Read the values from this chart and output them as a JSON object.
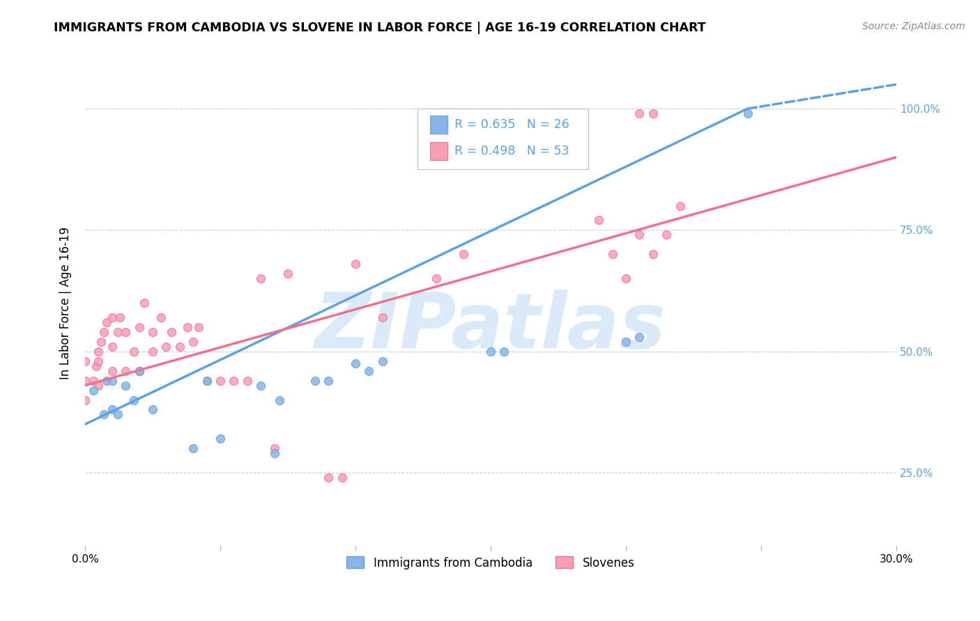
{
  "title": "IMMIGRANTS FROM CAMBODIA VS SLOVENE IN LABOR FORCE | AGE 16-19 CORRELATION CHART",
  "source": "Source: ZipAtlas.com",
  "ylabel": "In Labor Force | Age 16-19",
  "xlim": [
    0.0,
    0.3
  ],
  "ylim": [
    0.1,
    1.1
  ],
  "yticks": [
    0.25,
    0.5,
    0.75,
    1.0
  ],
  "ytick_labels": [
    "25.0%",
    "50.0%",
    "75.0%",
    "100.0%"
  ],
  "xticks": [
    0.0,
    0.05,
    0.1,
    0.15,
    0.2,
    0.25,
    0.3
  ],
  "xtick_labels": [
    "0.0%",
    "",
    "",
    "",
    "",
    "",
    "30.0%"
  ],
  "color_cambodia": "#89b4e8",
  "color_slovene": "#f5a0b5",
  "line_color_cambodia": "#5ba3e0",
  "line_color_slovene": "#f07090",
  "watermark": "ZIPatlas",
  "watermark_color": "#daeaf8",
  "cambodia_x": [
    0.003,
    0.007,
    0.008,
    0.01,
    0.01,
    0.012,
    0.015,
    0.018,
    0.02,
    0.025,
    0.04,
    0.045,
    0.05,
    0.065,
    0.07,
    0.072,
    0.085,
    0.09,
    0.1,
    0.105,
    0.11,
    0.15,
    0.155,
    0.2,
    0.205,
    0.245
  ],
  "cambodia_y": [
    0.42,
    0.37,
    0.44,
    0.38,
    0.44,
    0.37,
    0.43,
    0.4,
    0.46,
    0.38,
    0.3,
    0.44,
    0.32,
    0.43,
    0.29,
    0.4,
    0.44,
    0.44,
    0.475,
    0.46,
    0.48,
    0.5,
    0.5,
    0.52,
    0.53,
    0.99
  ],
  "slovene_x": [
    0.0,
    0.0,
    0.0,
    0.003,
    0.004,
    0.005,
    0.005,
    0.005,
    0.006,
    0.007,
    0.008,
    0.01,
    0.01,
    0.01,
    0.012,
    0.013,
    0.015,
    0.015,
    0.018,
    0.02,
    0.02,
    0.022,
    0.025,
    0.025,
    0.028,
    0.03,
    0.032,
    0.035,
    0.038,
    0.04,
    0.042,
    0.045,
    0.05,
    0.055,
    0.06,
    0.065,
    0.07,
    0.075,
    0.09,
    0.095,
    0.1,
    0.11,
    0.13,
    0.14,
    0.19,
    0.2,
    0.205,
    0.21,
    0.22,
    0.195,
    0.205,
    0.21,
    0.215
  ],
  "slovene_y": [
    0.4,
    0.44,
    0.48,
    0.44,
    0.47,
    0.43,
    0.48,
    0.5,
    0.52,
    0.54,
    0.56,
    0.46,
    0.51,
    0.57,
    0.54,
    0.57,
    0.46,
    0.54,
    0.5,
    0.46,
    0.55,
    0.6,
    0.5,
    0.54,
    0.57,
    0.51,
    0.54,
    0.51,
    0.55,
    0.52,
    0.55,
    0.44,
    0.44,
    0.44,
    0.44,
    0.65,
    0.3,
    0.66,
    0.24,
    0.24,
    0.68,
    0.57,
    0.65,
    0.7,
    0.77,
    0.65,
    0.99,
    0.99,
    0.8,
    0.7,
    0.74,
    0.7,
    0.74
  ],
  "cam_line_x0": 0.0,
  "cam_line_x1": 0.245,
  "cam_line_x_dash": 0.3,
  "cam_line_y0": 0.35,
  "cam_line_y1": 1.0,
  "cam_line_y_dash": 1.05,
  "slv_line_x0": 0.0,
  "slv_line_x1": 0.3,
  "slv_line_y0": 0.43,
  "slv_line_y1": 0.9
}
